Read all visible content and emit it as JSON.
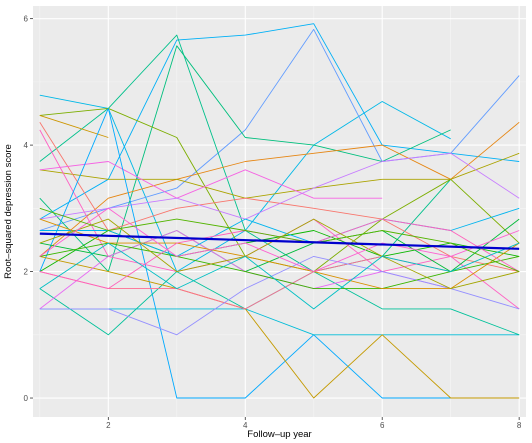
{
  "chart_data": {
    "type": "line",
    "title": "",
    "xlabel": "Follow–up year",
    "ylabel": "Root–squared depression score",
    "xlim": [
      0.9,
      8.1
    ],
    "ylim": [
      -0.3,
      6.2
    ],
    "x_ticks": [
      2,
      4,
      6,
      8
    ],
    "y_ticks": [
      0,
      2,
      4,
      6
    ],
    "grid": true,
    "legend": "none",
    "colors": {
      "panel_background": "#ebebeb",
      "grid_major": "#ffffff",
      "grid_minor": "#f5f5f5",
      "trend_line": "#0000cd"
    },
    "trend": {
      "x": [
        1,
        8
      ],
      "y": [
        2.6,
        2.36
      ]
    },
    "series": [
      {
        "color": "#00b8e7",
        "x": [
          1,
          2,
          3,
          4,
          5,
          6,
          7
        ],
        "y": [
          4.79,
          4.58,
          2.0,
          2.65,
          4.0,
          4.69,
          4.1
        ]
      },
      {
        "color": "#00b0f6",
        "x": [
          1,
          2,
          3,
          4,
          5,
          6,
          8
        ],
        "y": [
          2.83,
          3.46,
          5.66,
          5.74,
          5.92,
          4.0,
          3.74
        ]
      },
      {
        "color": "#619cff",
        "x": [
          1,
          2,
          3,
          4,
          5,
          6,
          7,
          8
        ],
        "y": [
          2.65,
          3.0,
          3.32,
          4.24,
          5.83,
          3.74,
          3.87,
          5.1
        ]
      },
      {
        "color": "#00c08b",
        "x": [
          1,
          2,
          3,
          4,
          5,
          6,
          7
        ],
        "y": [
          3.74,
          4.58,
          5.74,
          2.65,
          2.0,
          2.24,
          3.46
        ]
      },
      {
        "color": "#00bf7d",
        "x": [
          1,
          2,
          3,
          4,
          5,
          6,
          7
        ],
        "y": [
          3.16,
          2.0,
          5.57,
          4.12,
          4.0,
          3.74,
          4.24
        ]
      },
      {
        "color": "#7cae00",
        "x": [
          1,
          2,
          3,
          4,
          5,
          6,
          7,
          8
        ],
        "y": [
          4.47,
          4.58,
          4.12,
          2.24,
          2.0,
          2.83,
          3.46,
          2.45
        ]
      },
      {
        "color": "#cd9600",
        "x": [
          1,
          2
        ],
        "y": [
          4.47,
          4.12
        ]
      },
      {
        "color": "#e68613",
        "x": [
          1,
          2,
          3,
          4,
          5,
          6,
          7,
          8
        ],
        "y": [
          2.24,
          3.16,
          3.46,
          3.74,
          3.87,
          4.0,
          3.46,
          4.36
        ]
      },
      {
        "color": "#aba300",
        "x": [
          1,
          2,
          3,
          4,
          5,
          6,
          7,
          8
        ],
        "y": [
          3.61,
          3.46,
          3.46,
          3.16,
          3.32,
          3.46,
          3.46,
          3.87
        ]
      },
      {
        "color": "#f8766d",
        "x": [
          1,
          2,
          3,
          4,
          5,
          6,
          7,
          8
        ],
        "y": [
          4.36,
          2.65,
          3.0,
          3.16,
          3.0,
          2.83,
          2.24,
          2.0
        ]
      },
      {
        "color": "#ff61c3",
        "x": [
          1,
          2,
          3,
          4,
          5,
          6,
          7,
          8
        ],
        "y": [
          4.24,
          2.24,
          2.0,
          2.24,
          2.83,
          2.0,
          2.24,
          1.41
        ]
      },
      {
        "color": "#f564e3",
        "x": [
          1,
          2,
          3,
          4,
          5,
          6
        ],
        "y": [
          3.61,
          3.74,
          3.16,
          3.61,
          3.16,
          3.16
        ]
      },
      {
        "color": "#c77cff",
        "x": [
          1,
          2,
          3,
          4,
          5,
          6,
          7,
          8
        ],
        "y": [
          2.83,
          3.0,
          3.16,
          2.83,
          3.32,
          3.74,
          3.87,
          3.16
        ]
      },
      {
        "color": "#00a9ff",
        "x": [
          1,
          2,
          3,
          4,
          5,
          6,
          7
        ],
        "y": [
          2.0,
          4.58,
          0.0,
          0.0,
          1.0,
          0.0,
          0.0
        ]
      },
      {
        "color": "#00bcd8",
        "x": [
          1,
          2,
          3,
          4,
          5,
          6,
          7,
          8
        ],
        "y": [
          1.41,
          1.41,
          1.41,
          1.41,
          1.0,
          1.0,
          1.0,
          1.0
        ]
      },
      {
        "color": "#00c19a",
        "x": [
          1,
          2,
          3,
          4,
          5,
          6,
          7,
          8
        ],
        "y": [
          1.73,
          1.0,
          2.0,
          1.41,
          2.0,
          1.41,
          1.41,
          1.0
        ]
      },
      {
        "color": "#0cb702",
        "x": [
          1,
          2,
          3,
          4,
          5,
          6,
          7,
          8
        ],
        "y": [
          2.0,
          2.65,
          2.24,
          2.45,
          2.65,
          2.24,
          2.45,
          2.24
        ]
      },
      {
        "color": "#00ba38",
        "x": [
          1,
          2,
          3,
          4,
          5,
          6,
          7,
          8
        ],
        "y": [
          2.45,
          2.24,
          2.65,
          2.0,
          2.45,
          2.65,
          2.0,
          2.83
        ]
      },
      {
        "color": "#c49a00",
        "x": [
          1,
          2,
          3,
          4,
          5,
          6,
          7,
          8
        ],
        "y": [
          2.24,
          2.0,
          1.73,
          1.41,
          0.0,
          1.0,
          0.0,
          0.0
        ]
      },
      {
        "color": "#ff6c91",
        "x": [
          1,
          2,
          3,
          4,
          5,
          6,
          7
        ],
        "y": [
          2.0,
          1.73,
          1.73,
          1.41,
          2.0,
          2.24,
          2.0
        ]
      },
      {
        "color": "#e76bf3",
        "x": [
          1,
          2,
          3,
          4,
          5,
          6,
          7
        ],
        "y": [
          1.41,
          2.24,
          2.65,
          2.0,
          1.73,
          2.0,
          1.73
        ]
      },
      {
        "color": "#9590ff",
        "x": [
          1,
          2,
          3,
          4,
          5,
          6,
          7,
          8
        ],
        "y": [
          1.41,
          1.41,
          1.0,
          1.73,
          2.24,
          2.0,
          1.73,
          1.41
        ]
      },
      {
        "color": "#00b4ef",
        "x": [
          1,
          2,
          3,
          4,
          5,
          6,
          7,
          8
        ],
        "y": [
          2.65,
          2.65,
          2.24,
          2.83,
          2.45,
          2.83,
          2.65,
          3.0
        ]
      },
      {
        "color": "#39b600",
        "x": [
          1,
          2,
          3,
          4,
          5,
          6,
          7,
          8
        ],
        "y": [
          2.24,
          2.45,
          2.24,
          2.0,
          1.73,
          1.73,
          2.0,
          2.24
        ]
      },
      {
        "color": "#d89000",
        "x": [
          1,
          2,
          3,
          4,
          5,
          6,
          7,
          8
        ],
        "y": [
          2.83,
          2.45,
          2.45,
          2.24,
          2.0,
          1.73,
          1.73,
          2.45
        ]
      },
      {
        "color": "#ff62bc",
        "x": [
          1,
          2,
          3,
          4,
          5,
          6,
          7,
          8
        ],
        "y": [
          2.0,
          1.73,
          2.45,
          2.65,
          2.45,
          2.83,
          2.65,
          2.0
        ]
      },
      {
        "color": "#a3a500",
        "x": [
          1,
          2,
          3,
          4,
          5,
          6,
          7,
          8
        ],
        "y": [
          2.45,
          2.83,
          2.0,
          2.24,
          2.83,
          2.24,
          1.73,
          2.0
        ]
      },
      {
        "color": "#00bfc4",
        "x": [
          1,
          2,
          3,
          4,
          5,
          6,
          7,
          8
        ],
        "y": [
          1.73,
          2.45,
          1.73,
          2.24,
          1.41,
          2.24,
          2.0,
          2.45
        ]
      },
      {
        "color": "#fd61d1",
        "x": [
          1,
          2,
          3,
          4,
          5,
          6,
          7,
          8
        ],
        "y": [
          2.24,
          3.0,
          2.24,
          2.45,
          2.0,
          2.45,
          2.24,
          2.65
        ]
      },
      {
        "color": "#53b400",
        "x": [
          1,
          2,
          3,
          4,
          5,
          6,
          7,
          8
        ],
        "y": [
          3.0,
          2.65,
          2.83,
          2.65,
          2.45,
          2.65,
          2.45,
          2.0
        ]
      }
    ]
  }
}
